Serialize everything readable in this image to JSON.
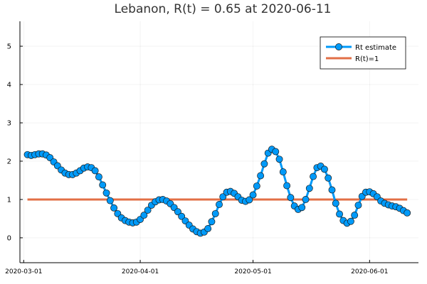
{
  "chart_data": {
    "type": "line",
    "title": "Lebanon, R(t) = 0.65 at 2020-06-11",
    "xlabel": "",
    "ylabel": "",
    "x_ticks": [
      "2020-03-01",
      "2020-04-01",
      "2020-05-01",
      "2020-06-01"
    ],
    "y_ticks": [
      0,
      1,
      2,
      3,
      4,
      5
    ],
    "ylim": [
      -0.65,
      5.65
    ],
    "xlim": [
      "2020-02-29",
      "2020-06-14"
    ],
    "grid": true,
    "legend_position": "top-right",
    "series": [
      {
        "name": "Rt estimate",
        "color": "#009AF9",
        "marker": "circle",
        "start_date": "2020-03-02",
        "values": [
          2.17,
          2.15,
          2.17,
          2.19,
          2.19,
          2.16,
          2.09,
          1.98,
          1.88,
          1.77,
          1.69,
          1.65,
          1.65,
          1.69,
          1.75,
          1.82,
          1.85,
          1.83,
          1.75,
          1.59,
          1.38,
          1.17,
          0.97,
          0.78,
          0.63,
          0.52,
          0.45,
          0.41,
          0.39,
          0.41,
          0.48,
          0.59,
          0.72,
          0.85,
          0.94,
          0.99,
          1.0,
          0.96,
          0.89,
          0.79,
          0.68,
          0.56,
          0.44,
          0.33,
          0.23,
          0.16,
          0.12,
          0.15,
          0.24,
          0.42,
          0.63,
          0.87,
          1.07,
          1.19,
          1.21,
          1.16,
          1.07,
          0.98,
          0.95,
          0.99,
          1.12,
          1.35,
          1.62,
          1.93,
          2.21,
          2.31,
          2.25,
          2.05,
          1.72,
          1.36,
          1.05,
          0.83,
          0.74,
          0.79,
          1.0,
          1.29,
          1.6,
          1.83,
          1.87,
          1.79,
          1.56,
          1.25,
          0.9,
          0.62,
          0.45,
          0.38,
          0.43,
          0.59,
          0.85,
          1.08,
          1.19,
          1.2,
          1.15,
          1.07,
          0.96,
          0.9,
          0.86,
          0.83,
          0.81,
          0.77,
          0.71,
          0.65
        ]
      },
      {
        "name": "R(t)=1",
        "color": "#E26F46",
        "marker": "none",
        "x": [
          "2020-03-02",
          "2020-06-11"
        ],
        "values": [
          1,
          1
        ]
      }
    ]
  }
}
